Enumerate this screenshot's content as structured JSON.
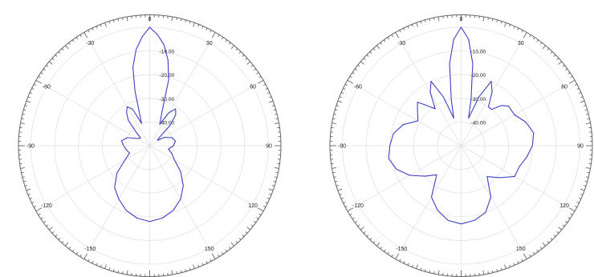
{
  "colors": {
    "background": "#ffffff",
    "trace": "#3f3fc4",
    "grid": "#e2e2e2",
    "frame": "#666666",
    "text": "#222222"
  },
  "chart_data": [
    {
      "type": "polar-line",
      "theta_unit": "deg",
      "theta_direction": "clockwise",
      "theta_zero": "top",
      "angle_labels": [
        "0",
        "30",
        "60",
        "90",
        "120",
        "150",
        "-150",
        "-120",
        "-90",
        "-60",
        "-30"
      ],
      "radial_labels": [
        "-10.00",
        "-20.00",
        "-30.00",
        "-40.00"
      ],
      "radial_range": [
        -50,
        0
      ],
      "grid": true,
      "series": [
        {
          "points": [
            [
              -180,
              -18
            ],
            [
              -170,
              -19
            ],
            [
              -160,
              -21
            ],
            [
              -150,
              -24
            ],
            [
              -140,
              -27
            ],
            [
              -130,
              -32
            ],
            [
              -120,
              -38
            ],
            [
              -110,
              -41
            ],
            [
              -100,
              -40
            ],
            [
              -90,
              -39
            ],
            [
              -80,
              -38
            ],
            [
              -70,
              -40
            ],
            [
              -60,
              -44
            ],
            [
              -50,
              -45
            ],
            [
              -45,
              -42
            ],
            [
              -40,
              -36
            ],
            [
              -35,
              -33
            ],
            [
              -30,
              -31
            ],
            [
              -25,
              -33
            ],
            [
              -20,
              -40
            ],
            [
              -15,
              -26
            ],
            [
              -12,
              -16
            ],
            [
              -8,
              -9
            ],
            [
              -4,
              -4
            ],
            [
              0,
              0
            ],
            [
              4,
              -3
            ],
            [
              8,
              -7
            ],
            [
              12,
              -13
            ],
            [
              16,
              -21
            ],
            [
              20,
              -35
            ],
            [
              25,
              -40
            ],
            [
              30,
              -34
            ],
            [
              35,
              -31
            ],
            [
              40,
              -33
            ],
            [
              45,
              -38
            ],
            [
              50,
              -45
            ],
            [
              55,
              -46
            ],
            [
              60,
              -43
            ],
            [
              70,
              -40
            ],
            [
              80,
              -39
            ],
            [
              90,
              -40
            ],
            [
              100,
              -42
            ],
            [
              110,
              -40
            ],
            [
              120,
              -38
            ],
            [
              130,
              -33
            ],
            [
              140,
              -28
            ],
            [
              150,
              -24
            ],
            [
              160,
              -21
            ],
            [
              170,
              -19
            ],
            [
              180,
              -18
            ]
          ]
        }
      ]
    },
    {
      "type": "polar-line",
      "theta_unit": "deg",
      "theta_direction": "clockwise",
      "theta_zero": "top",
      "angle_labels": [
        "0",
        "30",
        "60",
        "90",
        "120",
        "150",
        "-150",
        "-120",
        "-90",
        "-60",
        "-30"
      ],
      "radial_labels": [
        "-10.00",
        "-20.00",
        "-30.00",
        "-40.00"
      ],
      "radial_range": [
        -50,
        0
      ],
      "grid": true,
      "series": [
        {
          "points": [
            [
              -180,
              -17
            ],
            [
              -170,
              -18
            ],
            [
              -160,
              -21
            ],
            [
              -150,
              -25
            ],
            [
              -140,
              -34
            ],
            [
              -130,
              -30
            ],
            [
              -120,
              -25
            ],
            [
              -110,
              -21
            ],
            [
              -100,
              -19
            ],
            [
              -90,
              -20
            ],
            [
              -80,
              -21
            ],
            [
              -70,
              -24
            ],
            [
              -60,
              -29
            ],
            [
              -50,
              -26
            ],
            [
              -45,
              -24
            ],
            [
              -40,
              -28
            ],
            [
              -35,
              -31
            ],
            [
              -30,
              -24
            ],
            [
              -25,
              -20
            ],
            [
              -20,
              -28
            ],
            [
              -15,
              -38
            ],
            [
              -12,
              -30
            ],
            [
              -8,
              -15
            ],
            [
              -4,
              -5
            ],
            [
              0,
              0
            ],
            [
              4,
              -5
            ],
            [
              8,
              -15
            ],
            [
              12,
              -30
            ],
            [
              15,
              -38
            ],
            [
              20,
              -28
            ],
            [
              25,
              -20
            ],
            [
              30,
              -24
            ],
            [
              35,
              -30
            ],
            [
              40,
              -30
            ],
            [
              45,
              -26
            ],
            [
              50,
              -24
            ],
            [
              60,
              -24
            ],
            [
              70,
              -21
            ],
            [
              80,
              -19
            ],
            [
              90,
              -20
            ],
            [
              100,
              -22
            ],
            [
              110,
              -24
            ],
            [
              120,
              -24
            ],
            [
              130,
              -29
            ],
            [
              140,
              -33
            ],
            [
              150,
              -25
            ],
            [
              160,
              -20
            ],
            [
              170,
              -18
            ],
            [
              180,
              -17
            ]
          ]
        }
      ]
    }
  ]
}
